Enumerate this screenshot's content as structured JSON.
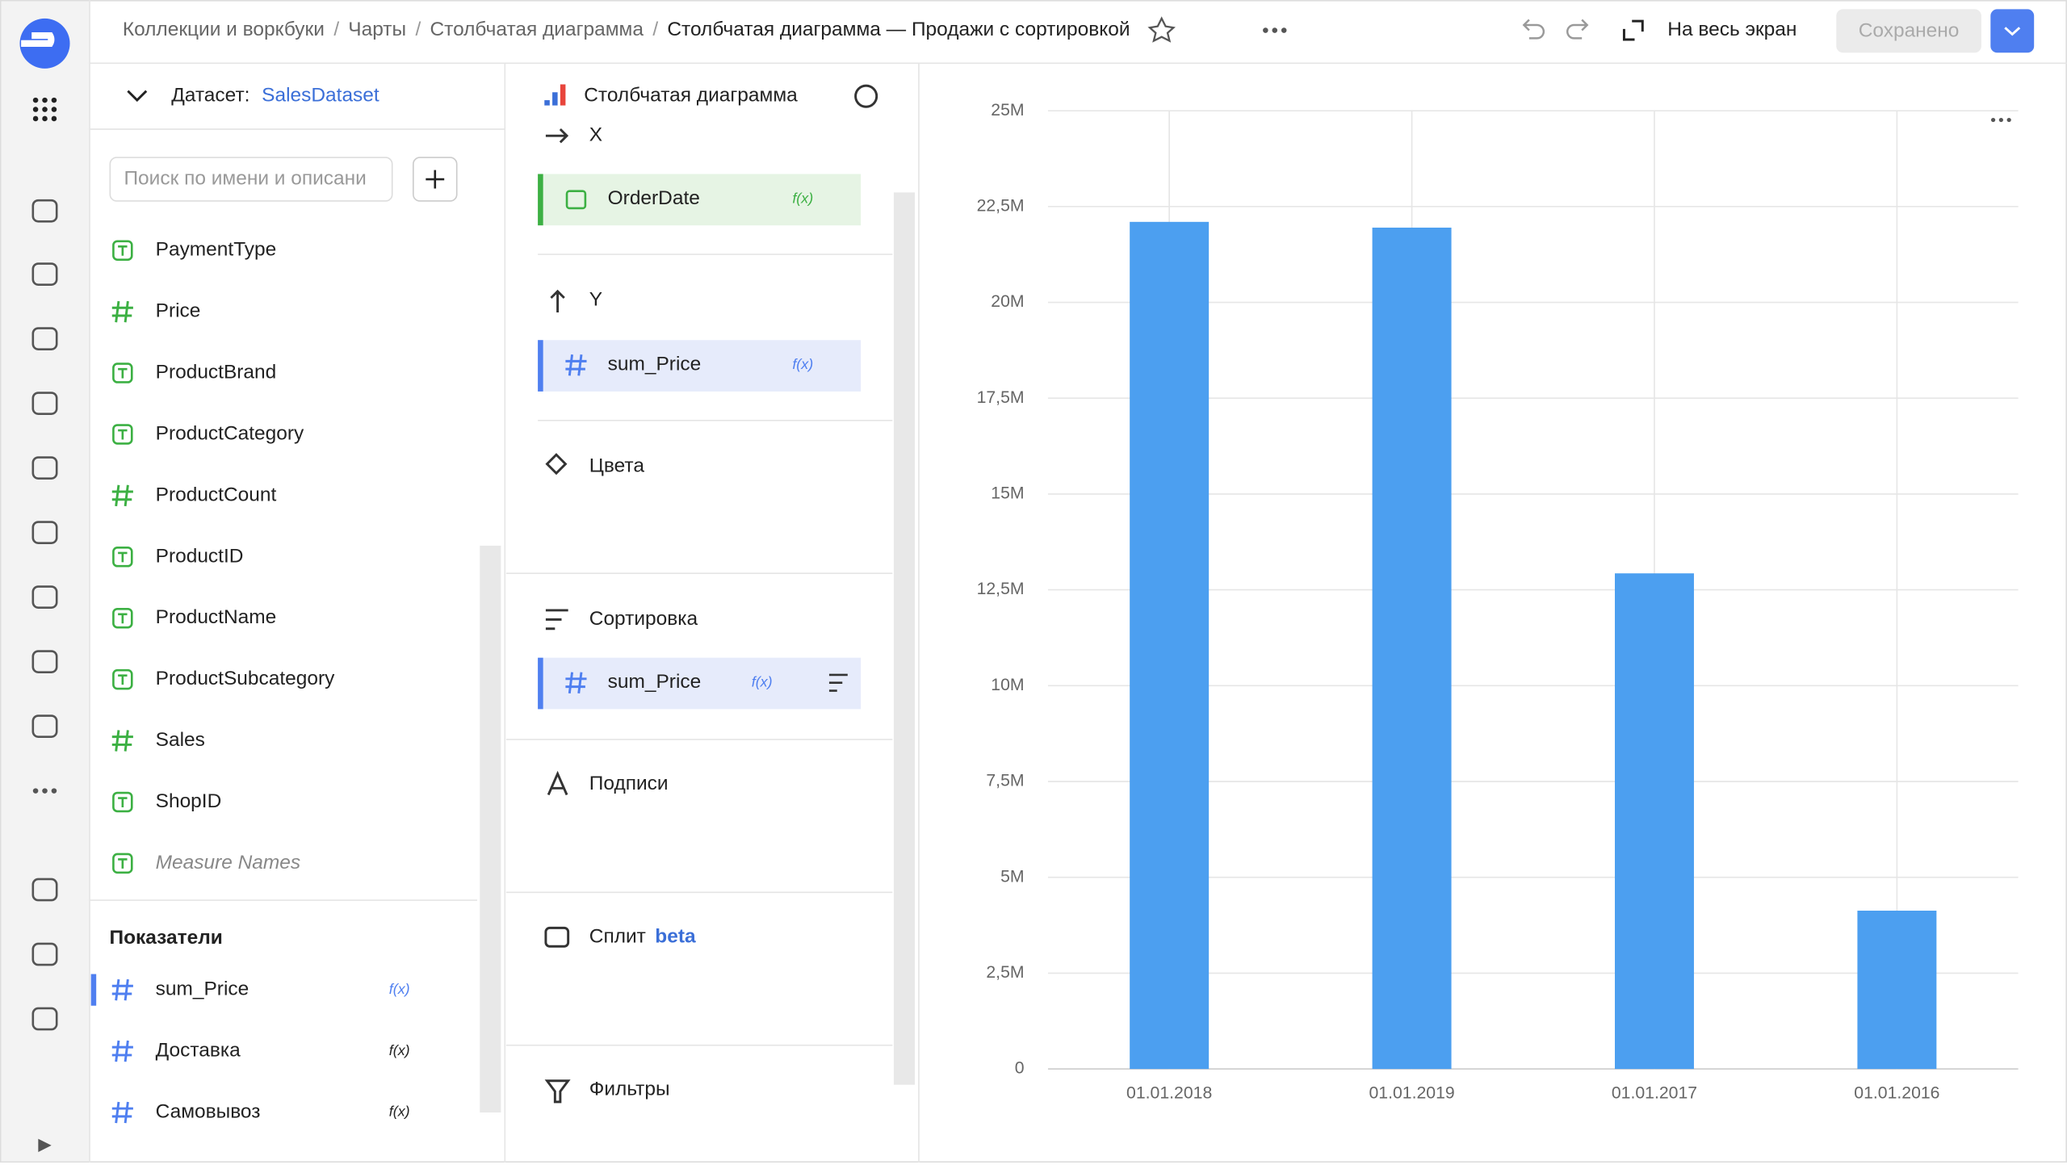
{
  "header": {
    "breadcrumbs": [
      "Коллекции и воркбуки",
      "Чарты",
      "Столбчатая диаграмма"
    ],
    "separator": "/",
    "title": "Столбчатая диаграмма — Продажи с сортировкой",
    "fullscreen": "На весь экран",
    "save": "Сохранено"
  },
  "dataset": {
    "label": "Датасет:",
    "name": "SalesDataset",
    "search_placeholder": "Поиск по имени и описани",
    "dimensions": [
      {
        "name": "PaymentType",
        "kind": "string"
      },
      {
        "name": "Price",
        "kind": "number"
      },
      {
        "name": "ProductBrand",
        "kind": "string"
      },
      {
        "name": "ProductCategory",
        "kind": "string"
      },
      {
        "name": "ProductCount",
        "kind": "number"
      },
      {
        "name": "ProductID",
        "kind": "string"
      },
      {
        "name": "ProductName",
        "kind": "string"
      },
      {
        "name": "ProductSubcategory",
        "kind": "string"
      },
      {
        "name": "Sales",
        "kind": "number"
      },
      {
        "name": "ShopID",
        "kind": "string"
      },
      {
        "name": "Measure Names",
        "kind": "string",
        "italic": true
      }
    ],
    "measures_title": "Показатели",
    "measures": [
      "sum_Price",
      "Доставка",
      "Самовывоз"
    ],
    "formula": "f(x)"
  },
  "visualization": {
    "title": "Столбчатая диаграмма",
    "x_label": "X",
    "x_field": "OrderDate",
    "y_label": "Y",
    "y_field": "sum_Price",
    "colors": "Цвета",
    "sort": "Сортировка",
    "sort_field": "sum_Price",
    "labels": "Подписи",
    "split": "Сплит",
    "split_badge": "beta",
    "filters": "Фильтры",
    "formula": "f(x)"
  },
  "chart_data": {
    "type": "bar",
    "categories": [
      "01.01.2018",
      "01.01.2019",
      "01.01.2017",
      "01.01.2016"
    ],
    "values": [
      22100000,
      21950000,
      12930000,
      4130000
    ],
    "color": "#4c9ff0",
    "ylim": [
      0,
      25000000
    ],
    "yticks": [
      {
        "value": 0,
        "label": "0"
      },
      {
        "value": 2500000,
        "label": "2,5M"
      },
      {
        "value": 5000000,
        "label": "5M"
      },
      {
        "value": 7500000,
        "label": "7,5M"
      },
      {
        "value": 10000000,
        "label": "10M"
      },
      {
        "value": 12500000,
        "label": "12,5M"
      },
      {
        "value": 15000000,
        "label": "15M"
      },
      {
        "value": 17500000,
        "label": "17,5M"
      },
      {
        "value": 20000000,
        "label": "20M"
      },
      {
        "value": 22500000,
        "label": "22,5M"
      },
      {
        "value": 25000000,
        "label": "25M"
      }
    ],
    "grid": true
  }
}
